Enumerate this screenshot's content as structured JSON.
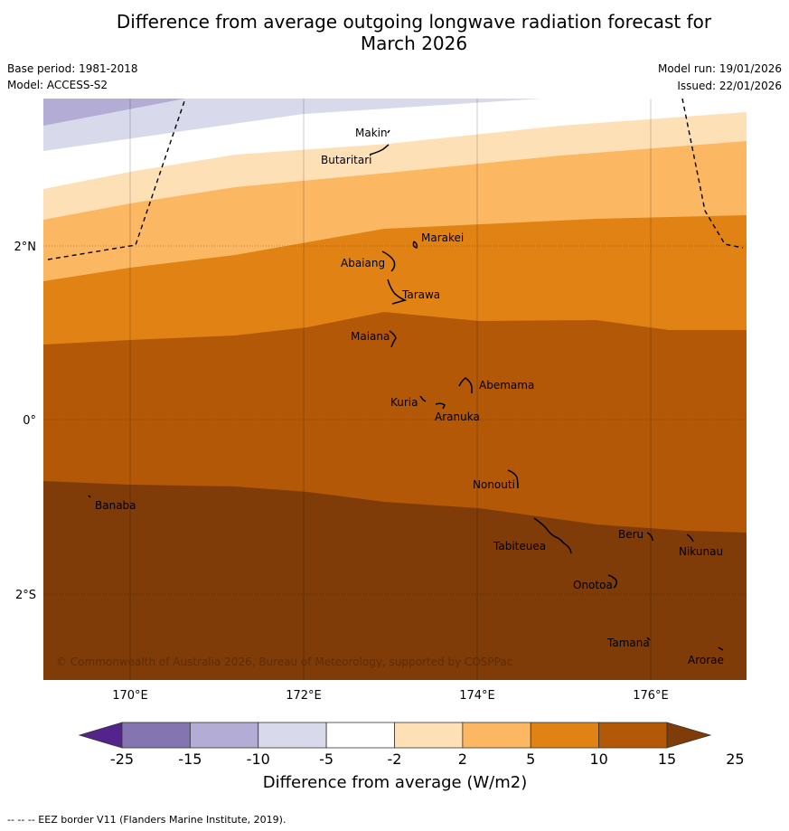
{
  "title": {
    "line1": "Difference from average outgoing longwave radiation forecast for",
    "line2": "March 2026"
  },
  "meta": {
    "base_period": "Base period: 1981-2018",
    "model": "Model: ACCESS-S2",
    "model_run": "Model run: 19/01/2026",
    "issued": "Issued: 22/01/2026"
  },
  "map": {
    "lat_labels": [
      "2°N",
      "0°",
      "2°S"
    ],
    "lon_labels": [
      "170°E",
      "172°E",
      "174°E",
      "176°E"
    ],
    "copyright": "© Commonwealth of Australia 2026, Bureau of Meteorology, supported by COSPPac",
    "places": [
      "Makin",
      "Butaritari",
      "Marakei",
      "Abaiang",
      "Tarawa",
      "Maiana",
      "Abemama",
      "Kuria",
      "Aranuka",
      "Nonouti",
      "Banaba",
      "Beru",
      "Tabiteuea",
      "Nikunau",
      "Onotoa",
      "Tamana",
      "Arorae"
    ]
  },
  "legend": {
    "ticks": [
      "-25",
      "-15",
      "-10",
      "-5",
      "-2",
      "2",
      "5",
      "10",
      "15",
      "25"
    ],
    "colors": [
      "#54248c",
      "#8474b0",
      "#b3acd4",
      "#d9d9ec",
      "#ffffff",
      "#fee0b6",
      "#fbb762",
      "#e08214",
      "#b35806",
      "#7f3b08"
    ],
    "label": "Difference from average (W/m2)"
  },
  "footer": "--  --  -- EEZ border V11 (Flanders Marine Institute, 2019)."
}
